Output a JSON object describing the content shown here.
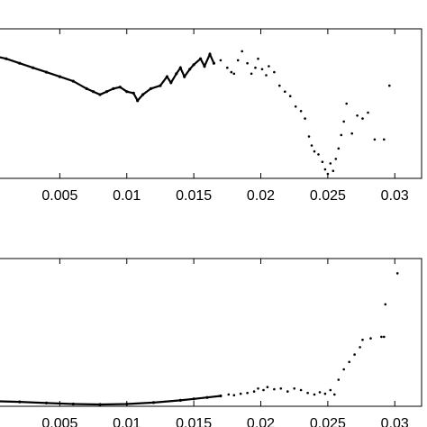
{
  "chart_data": [
    {
      "type": "scatter",
      "xlim": [
        0,
        0.032
      ],
      "ylim": [
        0,
        1
      ],
      "x_ticks": [
        "0.005",
        "0.01",
        "0.015",
        "0.02",
        "0.025",
        "0.03"
      ],
      "x_tick_values": [
        0.005,
        0.01,
        0.015,
        0.02,
        0.025,
        0.03
      ],
      "grid": false,
      "series": [
        {
          "points": [
            [
              0.0,
              0.82
            ],
            [
              0.001,
              0.8
            ],
            [
              0.002,
              0.77
            ],
            [
              0.003,
              0.74
            ],
            [
              0.004,
              0.71
            ],
            [
              0.005,
              0.68
            ],
            [
              0.006,
              0.65
            ],
            [
              0.007,
              0.6
            ],
            [
              0.0075,
              0.58
            ],
            [
              0.008,
              0.56
            ],
            [
              0.0085,
              0.58
            ],
            [
              0.009,
              0.6
            ],
            [
              0.0095,
              0.61
            ],
            [
              0.01,
              0.58
            ],
            [
              0.0105,
              0.57
            ],
            [
              0.0108,
              0.52
            ],
            [
              0.0112,
              0.56
            ],
            [
              0.0118,
              0.6
            ],
            [
              0.0125,
              0.62
            ],
            [
              0.013,
              0.68
            ],
            [
              0.0133,
              0.64
            ],
            [
              0.0137,
              0.7
            ],
            [
              0.014,
              0.74
            ],
            [
              0.0143,
              0.68
            ],
            [
              0.0147,
              0.73
            ],
            [
              0.015,
              0.76
            ],
            [
              0.0155,
              0.8
            ],
            [
              0.0158,
              0.75
            ],
            [
              0.0162,
              0.83
            ],
            [
              0.0165,
              0.77
            ],
            [
              0.017,
              0.79
            ],
            [
              0.0175,
              0.74
            ],
            [
              0.0178,
              0.71
            ],
            [
              0.018,
              0.7
            ],
            [
              0.0183,
              0.79
            ],
            [
              0.0186,
              0.85
            ],
            [
              0.019,
              0.77
            ],
            [
              0.0193,
              0.7
            ],
            [
              0.0196,
              0.74
            ],
            [
              0.0198,
              0.8
            ],
            [
              0.0201,
              0.73
            ],
            [
              0.0204,
              0.69
            ],
            [
              0.0206,
              0.75
            ],
            [
              0.021,
              0.71
            ],
            [
              0.0214,
              0.62
            ],
            [
              0.0218,
              0.58
            ],
            [
              0.0222,
              0.55
            ],
            [
              0.0226,
              0.48
            ],
            [
              0.023,
              0.45
            ],
            [
              0.0233,
              0.4
            ],
            [
              0.0236,
              0.28
            ],
            [
              0.0238,
              0.22
            ],
            [
              0.024,
              0.18
            ],
            [
              0.0243,
              0.16
            ],
            [
              0.0246,
              0.11
            ],
            [
              0.0248,
              0.06
            ],
            [
              0.025,
              0.03
            ],
            [
              0.0252,
              0.1
            ],
            [
              0.0254,
              0.05
            ],
            [
              0.0256,
              0.13
            ],
            [
              0.0258,
              0.2
            ],
            [
              0.026,
              0.29
            ],
            [
              0.0262,
              0.38
            ],
            [
              0.0264,
              0.5
            ],
            [
              0.0268,
              0.3
            ],
            [
              0.0272,
              0.42
            ],
            [
              0.0276,
              0.4
            ],
            [
              0.028,
              0.44
            ],
            [
              0.0285,
              0.26
            ],
            [
              0.0292,
              0.26
            ],
            [
              0.0296,
              0.62
            ]
          ]
        }
      ]
    },
    {
      "type": "scatter",
      "xlim": [
        0,
        0.032
      ],
      "ylim": [
        0,
        1
      ],
      "x_ticks": [
        "0.005",
        "0.01",
        "0.015",
        "0.02",
        "0.025",
        "0.03"
      ],
      "x_tick_values": [
        0.005,
        0.01,
        0.015,
        0.02,
        0.025,
        0.03
      ],
      "grid": false,
      "series": [
        {
          "points": [
            [
              0.0,
              0.035
            ],
            [
              0.002,
              0.03
            ],
            [
              0.004,
              0.022
            ],
            [
              0.006,
              0.015
            ],
            [
              0.008,
              0.012
            ],
            [
              0.01,
              0.015
            ],
            [
              0.012,
              0.025
            ],
            [
              0.014,
              0.04
            ],
            [
              0.015,
              0.05
            ],
            [
              0.016,
              0.06
            ],
            [
              0.017,
              0.07
            ],
            [
              0.0176,
              0.08
            ],
            [
              0.018,
              0.075
            ],
            [
              0.0185,
              0.085
            ],
            [
              0.019,
              0.09
            ],
            [
              0.0195,
              0.1
            ],
            [
              0.0198,
              0.12
            ],
            [
              0.0202,
              0.11
            ],
            [
              0.0205,
              0.13
            ],
            [
              0.021,
              0.115
            ],
            [
              0.0215,
              0.12
            ],
            [
              0.022,
              0.1
            ],
            [
              0.0225,
              0.12
            ],
            [
              0.023,
              0.11
            ],
            [
              0.0235,
              0.09
            ],
            [
              0.024,
              0.08
            ],
            [
              0.0244,
              0.095
            ],
            [
              0.0248,
              0.085
            ],
            [
              0.0252,
              0.11
            ],
            [
              0.0255,
              0.08
            ],
            [
              0.0258,
              0.18
            ],
            [
              0.0262,
              0.25
            ],
            [
              0.0266,
              0.3
            ],
            [
              0.027,
              0.35
            ],
            [
              0.0274,
              0.4
            ],
            [
              0.0276,
              0.45
            ],
            [
              0.0282,
              0.46
            ],
            [
              0.029,
              0.47
            ],
            [
              0.0292,
              0.47
            ],
            [
              0.0293,
              0.69
            ],
            [
              0.0302,
              0.9
            ]
          ]
        }
      ]
    }
  ]
}
